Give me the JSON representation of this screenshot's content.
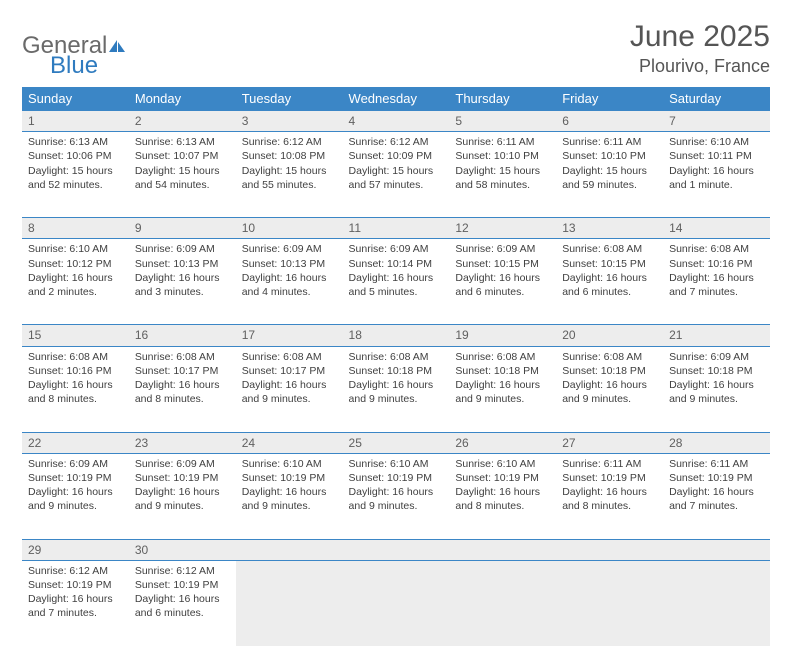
{
  "logo": {
    "general": "General",
    "blue": "Blue"
  },
  "title": "June 2025",
  "location": "Plourivo, France",
  "colors": {
    "header_bg": "#3b86c6",
    "header_text": "#ffffff",
    "daynum_bg": "#ededed",
    "border": "#3b86c6",
    "body_text": "#404040",
    "title_text": "#555555",
    "logo_general": "#6a6a6a",
    "logo_blue": "#2f7bbf"
  },
  "weekdays": [
    "Sunday",
    "Monday",
    "Tuesday",
    "Wednesday",
    "Thursday",
    "Friday",
    "Saturday"
  ],
  "weeks": [
    [
      {
        "n": "1",
        "sr": "6:13 AM",
        "ss": "10:06 PM",
        "dl": "15 hours and 52 minutes."
      },
      {
        "n": "2",
        "sr": "6:13 AM",
        "ss": "10:07 PM",
        "dl": "15 hours and 54 minutes."
      },
      {
        "n": "3",
        "sr": "6:12 AM",
        "ss": "10:08 PM",
        "dl": "15 hours and 55 minutes."
      },
      {
        "n": "4",
        "sr": "6:12 AM",
        "ss": "10:09 PM",
        "dl": "15 hours and 57 minutes."
      },
      {
        "n": "5",
        "sr": "6:11 AM",
        "ss": "10:10 PM",
        "dl": "15 hours and 58 minutes."
      },
      {
        "n": "6",
        "sr": "6:11 AM",
        "ss": "10:10 PM",
        "dl": "15 hours and 59 minutes."
      },
      {
        "n": "7",
        "sr": "6:10 AM",
        "ss": "10:11 PM",
        "dl": "16 hours and 1 minute."
      }
    ],
    [
      {
        "n": "8",
        "sr": "6:10 AM",
        "ss": "10:12 PM",
        "dl": "16 hours and 2 minutes."
      },
      {
        "n": "9",
        "sr": "6:09 AM",
        "ss": "10:13 PM",
        "dl": "16 hours and 3 minutes."
      },
      {
        "n": "10",
        "sr": "6:09 AM",
        "ss": "10:13 PM",
        "dl": "16 hours and 4 minutes."
      },
      {
        "n": "11",
        "sr": "6:09 AM",
        "ss": "10:14 PM",
        "dl": "16 hours and 5 minutes."
      },
      {
        "n": "12",
        "sr": "6:09 AM",
        "ss": "10:15 PM",
        "dl": "16 hours and 6 minutes."
      },
      {
        "n": "13",
        "sr": "6:08 AM",
        "ss": "10:15 PM",
        "dl": "16 hours and 6 minutes."
      },
      {
        "n": "14",
        "sr": "6:08 AM",
        "ss": "10:16 PM",
        "dl": "16 hours and 7 minutes."
      }
    ],
    [
      {
        "n": "15",
        "sr": "6:08 AM",
        "ss": "10:16 PM",
        "dl": "16 hours and 8 minutes."
      },
      {
        "n": "16",
        "sr": "6:08 AM",
        "ss": "10:17 PM",
        "dl": "16 hours and 8 minutes."
      },
      {
        "n": "17",
        "sr": "6:08 AM",
        "ss": "10:17 PM",
        "dl": "16 hours and 9 minutes."
      },
      {
        "n": "18",
        "sr": "6:08 AM",
        "ss": "10:18 PM",
        "dl": "16 hours and 9 minutes."
      },
      {
        "n": "19",
        "sr": "6:08 AM",
        "ss": "10:18 PM",
        "dl": "16 hours and 9 minutes."
      },
      {
        "n": "20",
        "sr": "6:08 AM",
        "ss": "10:18 PM",
        "dl": "16 hours and 9 minutes."
      },
      {
        "n": "21",
        "sr": "6:09 AM",
        "ss": "10:18 PM",
        "dl": "16 hours and 9 minutes."
      }
    ],
    [
      {
        "n": "22",
        "sr": "6:09 AM",
        "ss": "10:19 PM",
        "dl": "16 hours and 9 minutes."
      },
      {
        "n": "23",
        "sr": "6:09 AM",
        "ss": "10:19 PM",
        "dl": "16 hours and 9 minutes."
      },
      {
        "n": "24",
        "sr": "6:10 AM",
        "ss": "10:19 PM",
        "dl": "16 hours and 9 minutes."
      },
      {
        "n": "25",
        "sr": "6:10 AM",
        "ss": "10:19 PM",
        "dl": "16 hours and 9 minutes."
      },
      {
        "n": "26",
        "sr": "6:10 AM",
        "ss": "10:19 PM",
        "dl": "16 hours and 8 minutes."
      },
      {
        "n": "27",
        "sr": "6:11 AM",
        "ss": "10:19 PM",
        "dl": "16 hours and 8 minutes."
      },
      {
        "n": "28",
        "sr": "6:11 AM",
        "ss": "10:19 PM",
        "dl": "16 hours and 7 minutes."
      }
    ],
    [
      {
        "n": "29",
        "sr": "6:12 AM",
        "ss": "10:19 PM",
        "dl": "16 hours and 7 minutes."
      },
      {
        "n": "30",
        "sr": "6:12 AM",
        "ss": "10:19 PM",
        "dl": "16 hours and 6 minutes."
      },
      null,
      null,
      null,
      null,
      null
    ]
  ],
  "labels": {
    "sunrise": "Sunrise:",
    "sunset": "Sunset:",
    "daylight": "Daylight:"
  }
}
